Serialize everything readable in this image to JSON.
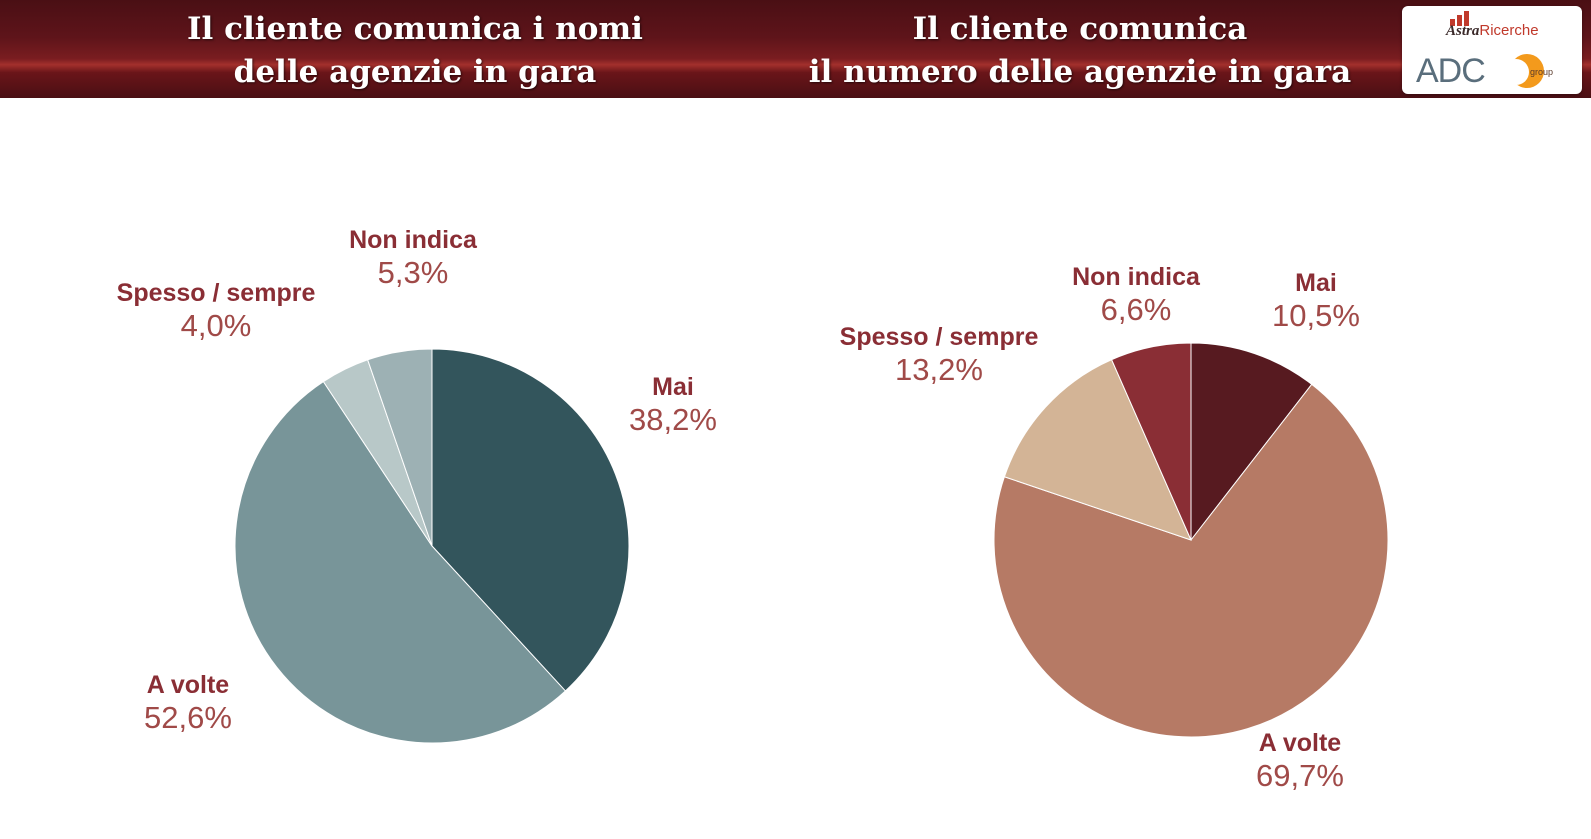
{
  "header": {
    "left_title_lines": [
      "Il cliente comunica i nomi",
      "delle agenzie in gara"
    ],
    "right_title_lines": [
      "Il cliente comunica",
      "il numero delle agenzie in gara"
    ]
  },
  "logo": {
    "astra_part1": "Astra",
    "astra_part2": "Ricerche",
    "adc": "ADC",
    "group": "group"
  },
  "colors": {
    "header_bg": "#5e141a",
    "label_name": "#8a2e35",
    "label_value": "#a04a48"
  },
  "chart_data": [
    {
      "type": "pie",
      "title": "Il cliente comunica i nomi delle agenzie in gara",
      "slices": [
        {
          "name": "Mai",
          "value": 38.2,
          "label": "38,2%",
          "color": "#33555c"
        },
        {
          "name": "A volte",
          "value": 52.6,
          "label": "52,6%",
          "color": "#789599"
        },
        {
          "name": "Spesso / sempre",
          "value": 4.0,
          "label": "4,0%",
          "color": "#b8c8c8"
        },
        {
          "name": "Non indica",
          "value": 5.3,
          "label": "5,3%",
          "color": "#9db1b4"
        }
      ]
    },
    {
      "type": "pie",
      "title": "Il cliente comunica il numero delle agenzie in gara",
      "slices": [
        {
          "name": "Mai",
          "value": 10.5,
          "label": "10,5%",
          "color": "#571a20"
        },
        {
          "name": "A volte",
          "value": 69.7,
          "label": "69,7%",
          "color": "#b67a65"
        },
        {
          "name": "Spesso / sempre",
          "value": 13.2,
          "label": "13,2%",
          "color": "#d3b496"
        },
        {
          "name": "Non indica",
          "value": 6.6,
          "label": "6,6%",
          "color": "#8a2e35"
        }
      ]
    }
  ]
}
